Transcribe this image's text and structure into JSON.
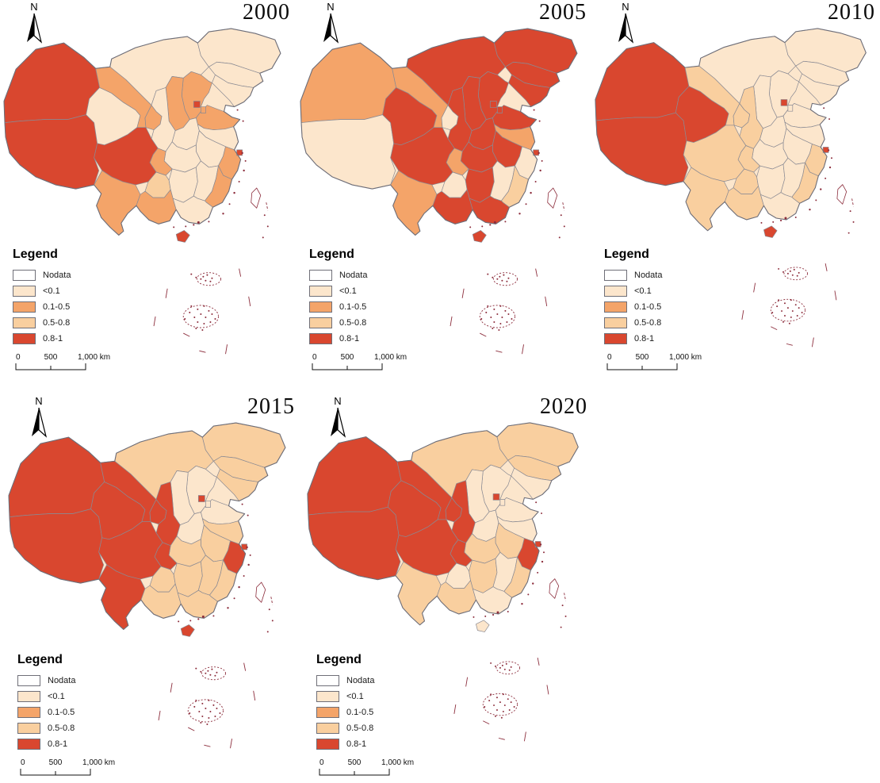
{
  "north_label": "N",
  "legend": {
    "title": "Legend",
    "items": [
      {
        "key": "nodata",
        "label": "Nodata",
        "color": "#ffffff"
      },
      {
        "key": "lt01",
        "label": "<0.1",
        "color": "#fce6cc"
      },
      {
        "key": "c0105",
        "label": "0.1-0.5",
        "color": "#f4a469"
      },
      {
        "key": "c0508",
        "label": "0.5-0.8",
        "color": "#f9cf9f"
      },
      {
        "key": "c081",
        "label": "0.8-1",
        "color": "#d9472f"
      }
    ]
  },
  "scalebar": {
    "start": "0",
    "mid": "500",
    "end": "1,000 km"
  },
  "map_style": {
    "province_border": "#8a8a93",
    "outer_border": "#6e6e78",
    "island_color": "#8c2d3c",
    "base_class": "lt01"
  },
  "maps": [
    {
      "year": "2000",
      "fills": {
        "xj": "c081",
        "xz": "c081",
        "qh": "lt01",
        "gs": "c0105",
        "nx": "c0105",
        "nm": "lt01",
        "hl": "lt01",
        "jl": "lt01",
        "ln": "lt01",
        "bj": "c081",
        "tj": "c0105",
        "he": "c0105",
        "sx": "c0105",
        "sn": "lt01",
        "sd": "c0105",
        "ha": "lt01",
        "js": "lt01",
        "ah": "lt01",
        "sh": "c081",
        "zj": "c0105",
        "hb": "lt01",
        "cq": "c0105",
        "sc": "c081",
        "gz": "c0508",
        "hn": "lt01",
        "jx": "lt01",
        "fj": "c0105",
        "yn": "c0105",
        "gx": "c0105",
        "gd": "lt01",
        "hi": "c081",
        "tw": "nodata"
      }
    },
    {
      "year": "2005",
      "fills": {
        "xj": "c0105",
        "xz": "lt01",
        "qh": "c081",
        "gs": "c0105",
        "nx": "lt01",
        "nm": "c081",
        "hl": "c081",
        "jl": "c081",
        "ln": "c081",
        "bj": "c081",
        "tj": "c081",
        "he": "c081",
        "sx": "c081",
        "sn": "c081",
        "sd": "c081",
        "ha": "c081",
        "js": "c0105",
        "ah": "c081",
        "sh": "c081",
        "zj": "lt01",
        "hb": "c081",
        "cq": "c0105",
        "sc": "c081",
        "gz": "lt01",
        "hn": "c081",
        "jx": "lt01",
        "fj": "c0508",
        "yn": "c0105",
        "gx": "c081",
        "gd": "c081",
        "hi": "c081",
        "tw": "nodata"
      }
    },
    {
      "year": "2010",
      "fills": {
        "xj": "c081",
        "xz": "c081",
        "qh": "c081",
        "gs": "c0508",
        "nx": "c0508",
        "nm": "lt01",
        "hl": "lt01",
        "jl": "lt01",
        "ln": "lt01",
        "bj": "c081",
        "tj": "lt01",
        "he": "lt01",
        "sx": "lt01",
        "sn": "c0508",
        "sd": "lt01",
        "ha": "lt01",
        "js": "lt01",
        "ah": "lt01",
        "sh": "c081",
        "zj": "c0508",
        "hb": "lt01",
        "cq": "c0508",
        "sc": "c0508",
        "gz": "c0508",
        "hn": "lt01",
        "jx": "lt01",
        "fj": "c0508",
        "yn": "c0508",
        "gx": "c0508",
        "gd": "lt01",
        "hi": "c081",
        "tw": "nodata"
      }
    },
    {
      "year": "2015",
      "fills": {
        "xj": "c081",
        "xz": "c081",
        "qh": "c081",
        "gs": "c081",
        "nx": "c081",
        "nm": "c0508",
        "hl": "c0508",
        "jl": "c0508",
        "ln": "c0508",
        "bj": "c081",
        "tj": "lt01",
        "he": "lt01",
        "sx": "lt01",
        "sn": "c081",
        "sd": "lt01",
        "ha": "lt01",
        "js": "c0508",
        "ah": "c0508",
        "sh": "c081",
        "zj": "c081",
        "hb": "c0508",
        "cq": "c081",
        "sc": "c081",
        "gz": "c0508",
        "hn": "c0508",
        "jx": "c0508",
        "fj": "c0508",
        "yn": "c081",
        "gx": "c0508",
        "gd": "c0508",
        "hi": "c081",
        "tw": "nodata"
      }
    },
    {
      "year": "2020",
      "fills": {
        "xj": "c081",
        "xz": "c081",
        "qh": "c081",
        "gs": "c081",
        "nx": "c081",
        "nm": "c0508",
        "hl": "c0508",
        "jl": "c0508",
        "ln": "lt01",
        "bj": "c081",
        "tj": "lt01",
        "he": "lt01",
        "sx": "lt01",
        "sn": "c081",
        "sd": "lt01",
        "ha": "lt01",
        "js": "lt01",
        "ah": "c0508",
        "sh": "c081",
        "zj": "c081",
        "hb": "c0508",
        "cq": "c081",
        "sc": "c081",
        "gz": "lt01",
        "hn": "c0508",
        "jx": "lt01",
        "fj": "c0508",
        "yn": "c0508",
        "gx": "c0508",
        "gd": "lt01",
        "hi": "lt01",
        "tw": "nodata"
      }
    }
  ]
}
